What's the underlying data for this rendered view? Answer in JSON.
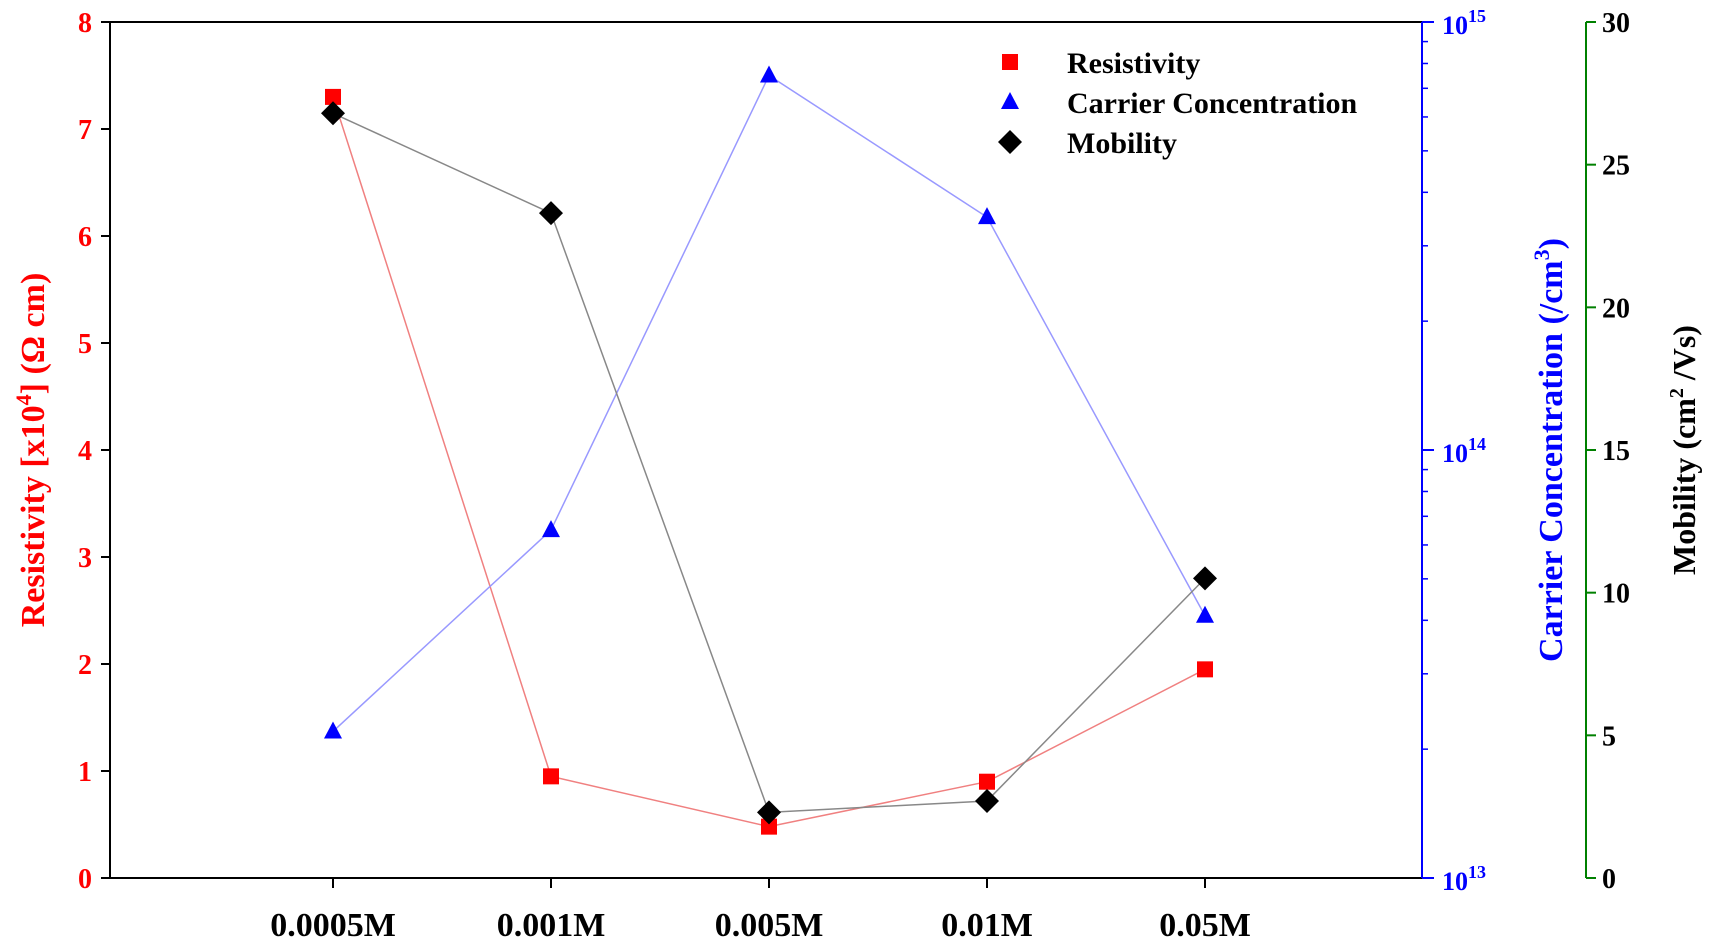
{
  "chart_data": {
    "type": "line",
    "categories": [
      "0.0005M",
      "0.001M",
      "0.005M",
      "0.01M",
      "0.05M"
    ],
    "series": [
      {
        "name": "Resistivity",
        "axis": "left",
        "marker": "square",
        "color": "#ff0000",
        "line_color": "#f08080",
        "values": [
          7.3,
          0.95,
          0.48,
          0.9,
          1.95
        ]
      },
      {
        "name": "Carrier Concentration",
        "axis": "right-log",
        "marker": "triangle",
        "color": "#0000ff",
        "line_color": "#9999ff",
        "values": [
          22000000000000.0,
          65000000000000.0,
          750000000000000.0,
          350000000000000.0,
          41000000000000.0
        ]
      },
      {
        "name": "Mobility",
        "axis": "far-right",
        "marker": "diamond",
        "color": "#000000",
        "line_color": "#888888",
        "values": [
          26.8,
          23.3,
          2.3,
          2.7,
          10.5
        ]
      }
    ],
    "left_axis": {
      "label_main": "Resistivity [x10",
      "label_sup": "4",
      "label_tail": "] (Ω cm)",
      "ylim": [
        0,
        8
      ],
      "ticks": [
        "0",
        "1",
        "2",
        "3",
        "4",
        "5",
        "6",
        "7",
        "8"
      ],
      "color": "#ff0000"
    },
    "right_axis": {
      "label_main": "Carrier Concentration (/cm",
      "label_sup": "3",
      "label_tail": ")",
      "scale": "log",
      "ylim": [
        10000000000000.0,
        1000000000000000.0
      ],
      "ticks": [
        {
          "base": "10",
          "exp": "13"
        },
        {
          "base": "10",
          "exp": "14"
        },
        {
          "base": "10",
          "exp": "15"
        }
      ],
      "color": "#0000ff"
    },
    "far_right_axis": {
      "label_main": "Mobility (cm",
      "label_sup": "2",
      "label_tail": " /Vs)",
      "ylim": [
        0,
        30
      ],
      "ticks": [
        "0",
        "5",
        "10",
        "15",
        "20",
        "25",
        "30"
      ],
      "color": "#000000",
      "spine_color": "#008000"
    },
    "legend": {
      "position": "top-right",
      "entries": [
        "Resistivity",
        "Carrier Concentration",
        "Mobility"
      ]
    }
  }
}
